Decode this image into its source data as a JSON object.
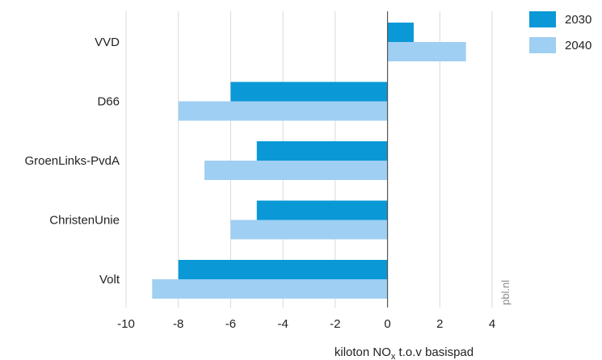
{
  "chart_data": {
    "type": "bar",
    "orientation": "horizontal",
    "categories": [
      "VVD",
      "D66",
      "GroenLinks-PvdA",
      "ChristenUnie",
      "Volt"
    ],
    "series": [
      {
        "name": "2030",
        "values": [
          1,
          -6,
          -5,
          -5,
          -8
        ],
        "color": "#0a98d6"
      },
      {
        "name": "2040",
        "values": [
          3,
          -8,
          -7,
          -6,
          -9
        ],
        "color": "#9fcff2"
      }
    ],
    "xlabel_main": "kiloton NO",
    "xlabel_sub": "x",
    "xlabel_rest": " t.o.v basispad",
    "xlim": [
      -10,
      4
    ],
    "xticks": [
      -10,
      -8,
      -6,
      -4,
      -2,
      0,
      2,
      4
    ],
    "grid": true,
    "legend_position": "top-right",
    "source_label": "pbl.nl",
    "colors": {
      "grid": "#d9d9d9",
      "zero_line": "#555555",
      "source_text": "#888888"
    }
  }
}
